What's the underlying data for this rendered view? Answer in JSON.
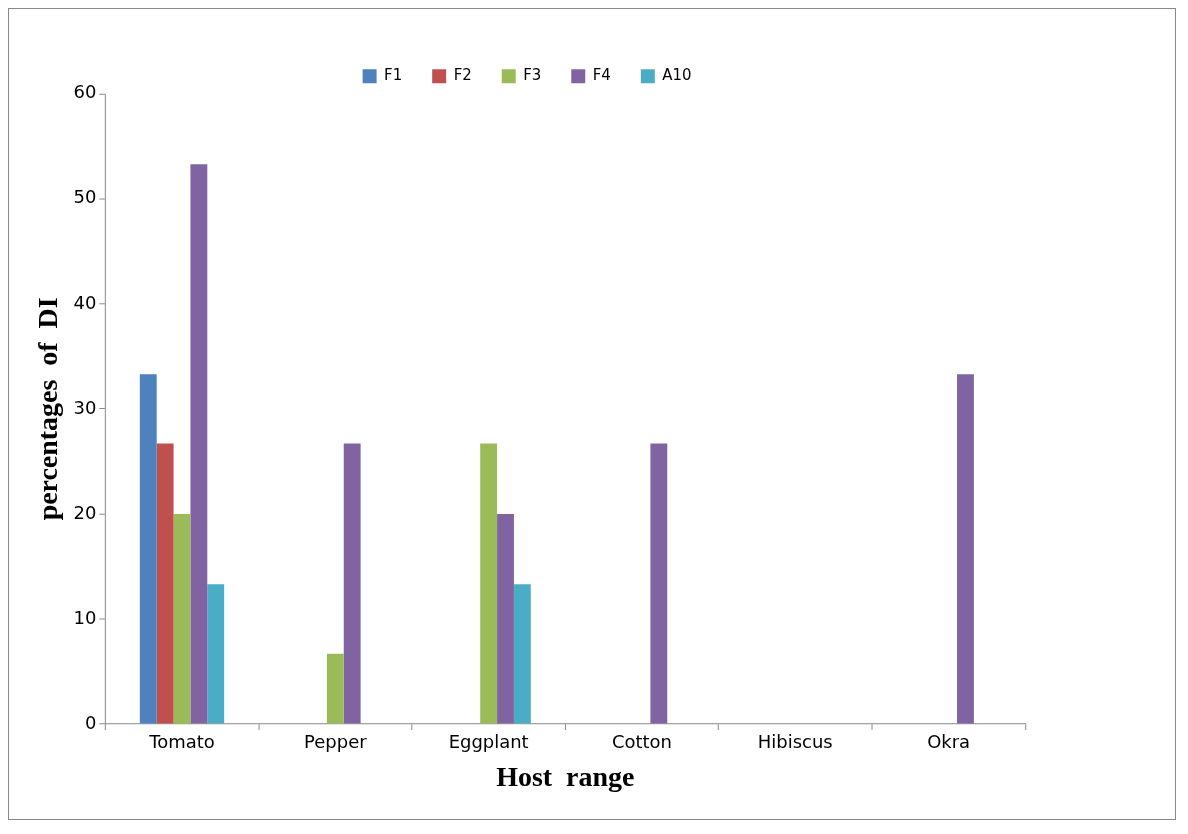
{
  "chart_data": {
    "type": "bar",
    "xlabel": "Host  range",
    "ylabel": "percentages  of  DI",
    "categories": [
      "Tomato",
      "Pepper",
      "Eggplant",
      "Cotton",
      "Hibiscus",
      "Okra"
    ],
    "series": [
      {
        "name": "F1",
        "color": "#4f81bd",
        "values": [
          33.3,
          0,
          0,
          0,
          0,
          0
        ]
      },
      {
        "name": "F2",
        "color": "#c0504d",
        "values": [
          26.7,
          0,
          0,
          0,
          0,
          0
        ]
      },
      {
        "name": "F3",
        "color": "#9bbb59",
        "values": [
          20,
          6.7,
          26.7,
          0,
          0,
          0
        ]
      },
      {
        "name": "F4",
        "color": "#8064a2",
        "values": [
          53.3,
          26.7,
          20,
          26.7,
          0,
          33.3
        ]
      },
      {
        "name": "A10",
        "color": "#4bacc6",
        "values": [
          13.3,
          0,
          13.3,
          0,
          0,
          0
        ]
      }
    ],
    "ylim": [
      0,
      60
    ],
    "yticks": [
      0,
      10,
      20,
      30,
      40,
      50,
      60
    ],
    "grid": false,
    "legend": "top"
  }
}
